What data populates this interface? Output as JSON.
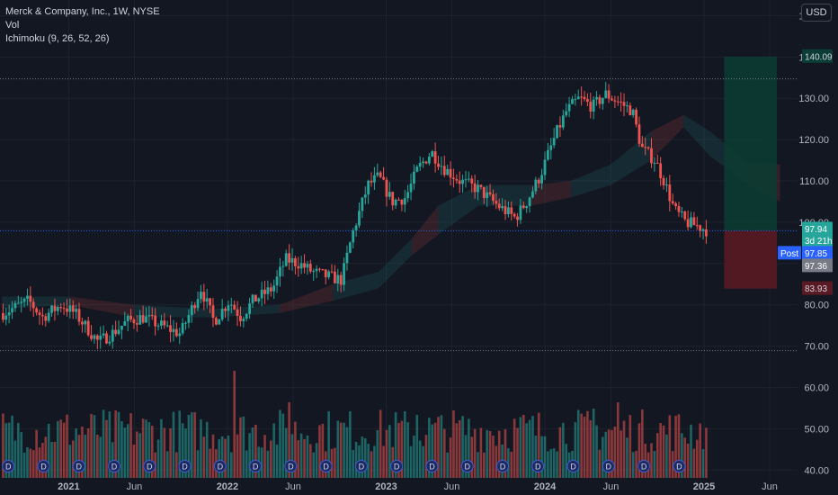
{
  "legend": {
    "title": "Merck & Company, Inc., 1W, NYSE",
    "volume": "Vol",
    "indicator": "Ichimoku (9, 26, 52, 26)"
  },
  "currency": "USD",
  "price_labels": {
    "target": "140.09",
    "last": "97.94",
    "countdown": "3d 21h",
    "post_tag": "Post",
    "post_price": "97.85",
    "extra_price": "97.36",
    "stop": "83.93"
  },
  "colors": {
    "background": "#131722",
    "up": "#26a69a",
    "down": "#ef5350",
    "target_zone": "#0c3b32",
    "stop_zone": "#5a1a24",
    "post_blue": "#2962ff"
  },
  "chart_data": {
    "type": "candlestick",
    "timeframe": "1W",
    "symbol": "Merck & Company, Inc.",
    "y_ticks": [
      150,
      140,
      130,
      120,
      110,
      100,
      90,
      80,
      70,
      60,
      50,
      40
    ],
    "y_range": [
      38.1,
      153.8
    ],
    "x_ticks": [
      "2021",
      "Jun",
      "2022",
      "Jun",
      "2023",
      "Jun",
      "2024",
      "Jun",
      "2025",
      "Jun"
    ],
    "x_range": [
      "2020-07-27",
      "2025-08-04"
    ],
    "horizontal_levels": [
      134.7,
      97.94,
      68.9
    ],
    "price_anchors": [
      [
        "2020-08-03",
        78
      ],
      [
        "2020-10-01",
        81
      ],
      [
        "2020-11-01",
        77
      ],
      [
        "2020-12-15",
        80
      ],
      [
        "2021-01-15",
        78
      ],
      [
        "2021-02-15",
        74
      ],
      [
        "2021-03-10",
        71
      ],
      [
        "2021-04-10",
        73
      ],
      [
        "2021-05-15",
        76
      ],
      [
        "2021-06-20",
        77
      ],
      [
        "2021-08-01",
        75
      ],
      [
        "2021-09-15",
        73
      ],
      [
        "2021-11-01",
        84
      ],
      [
        "2021-12-01",
        76
      ],
      [
        "2022-01-05",
        81
      ],
      [
        "2022-02-01",
        77
      ],
      [
        "2022-03-01",
        81
      ],
      [
        "2022-04-15",
        84
      ],
      [
        "2022-05-15",
        91
      ],
      [
        "2022-06-15",
        90
      ],
      [
        "2022-07-15",
        88
      ],
      [
        "2022-08-15",
        87
      ],
      [
        "2022-09-20",
        86
      ],
      [
        "2022-10-15",
        97
      ],
      [
        "2022-11-20",
        109
      ],
      [
        "2022-12-15",
        111
      ],
      [
        "2023-01-15",
        105
      ],
      [
        "2023-02-15",
        106
      ],
      [
        "2023-03-15",
        113
      ],
      [
        "2023-04-15",
        117
      ],
      [
        "2023-05-15",
        113
      ],
      [
        "2023-06-20",
        110
      ],
      [
        "2023-08-01",
        108
      ],
      [
        "2023-09-15",
        104
      ],
      [
        "2023-10-25",
        101
      ],
      [
        "2023-11-20",
        105
      ],
      [
        "2023-12-20",
        111
      ],
      [
        "2024-01-25",
        121
      ],
      [
        "2024-02-20",
        127
      ],
      [
        "2024-03-20",
        130
      ],
      [
        "2024-04-20",
        128
      ],
      [
        "2024-05-20",
        131
      ],
      [
        "2024-06-20",
        129
      ],
      [
        "2024-07-20",
        127
      ],
      [
        "2024-08-10",
        118
      ],
      [
        "2024-09-10",
        115
      ],
      [
        "2024-10-01",
        110
      ],
      [
        "2024-10-25",
        103
      ],
      [
        "2024-11-20",
        100
      ],
      [
        "2024-12-20",
        99
      ],
      [
        "2025-01-10",
        97.9
      ]
    ],
    "cloud_anchors": [
      [
        "2020-08-01",
        79,
        82
      ],
      [
        "2021-01-01",
        80,
        82
      ],
      [
        "2021-06-01",
        77,
        80
      ],
      [
        "2021-12-01",
        77,
        79
      ],
      [
        "2022-05-01",
        78,
        80
      ],
      [
        "2022-09-01",
        81,
        85
      ],
      [
        "2022-12-15",
        84,
        88
      ],
      [
        "2023-03-01",
        92,
        96
      ],
      [
        "2023-05-01",
        97,
        104
      ],
      [
        "2023-08-01",
        104,
        109
      ],
      [
        "2023-12-01",
        104,
        109
      ],
      [
        "2024-03-01",
        106,
        110
      ],
      [
        "2024-06-01",
        109,
        114
      ],
      [
        "2024-09-01",
        115,
        122
      ],
      [
        "2024-11-15",
        123,
        126
      ],
      [
        "2025-01-15",
        116,
        122
      ],
      [
        "2025-04-15",
        109,
        114
      ],
      [
        "2025-06-25",
        105,
        114
      ]
    ],
    "volume_spikes": [
      [
        "2022-01-20",
        0.85
      ],
      [
        "2022-05-20",
        0.6
      ],
      [
        "2023-03-15",
        0.5
      ],
      [
        "2024-04-20",
        0.55
      ],
      [
        "2024-06-15",
        0.6
      ]
    ],
    "position": {
      "entry": 97.94,
      "target": 140.09,
      "stop": 83.93,
      "start": "2025-01-06",
      "end": "2025-07-21"
    },
    "event_markers": "D / E badges at the bottom of the chart"
  }
}
